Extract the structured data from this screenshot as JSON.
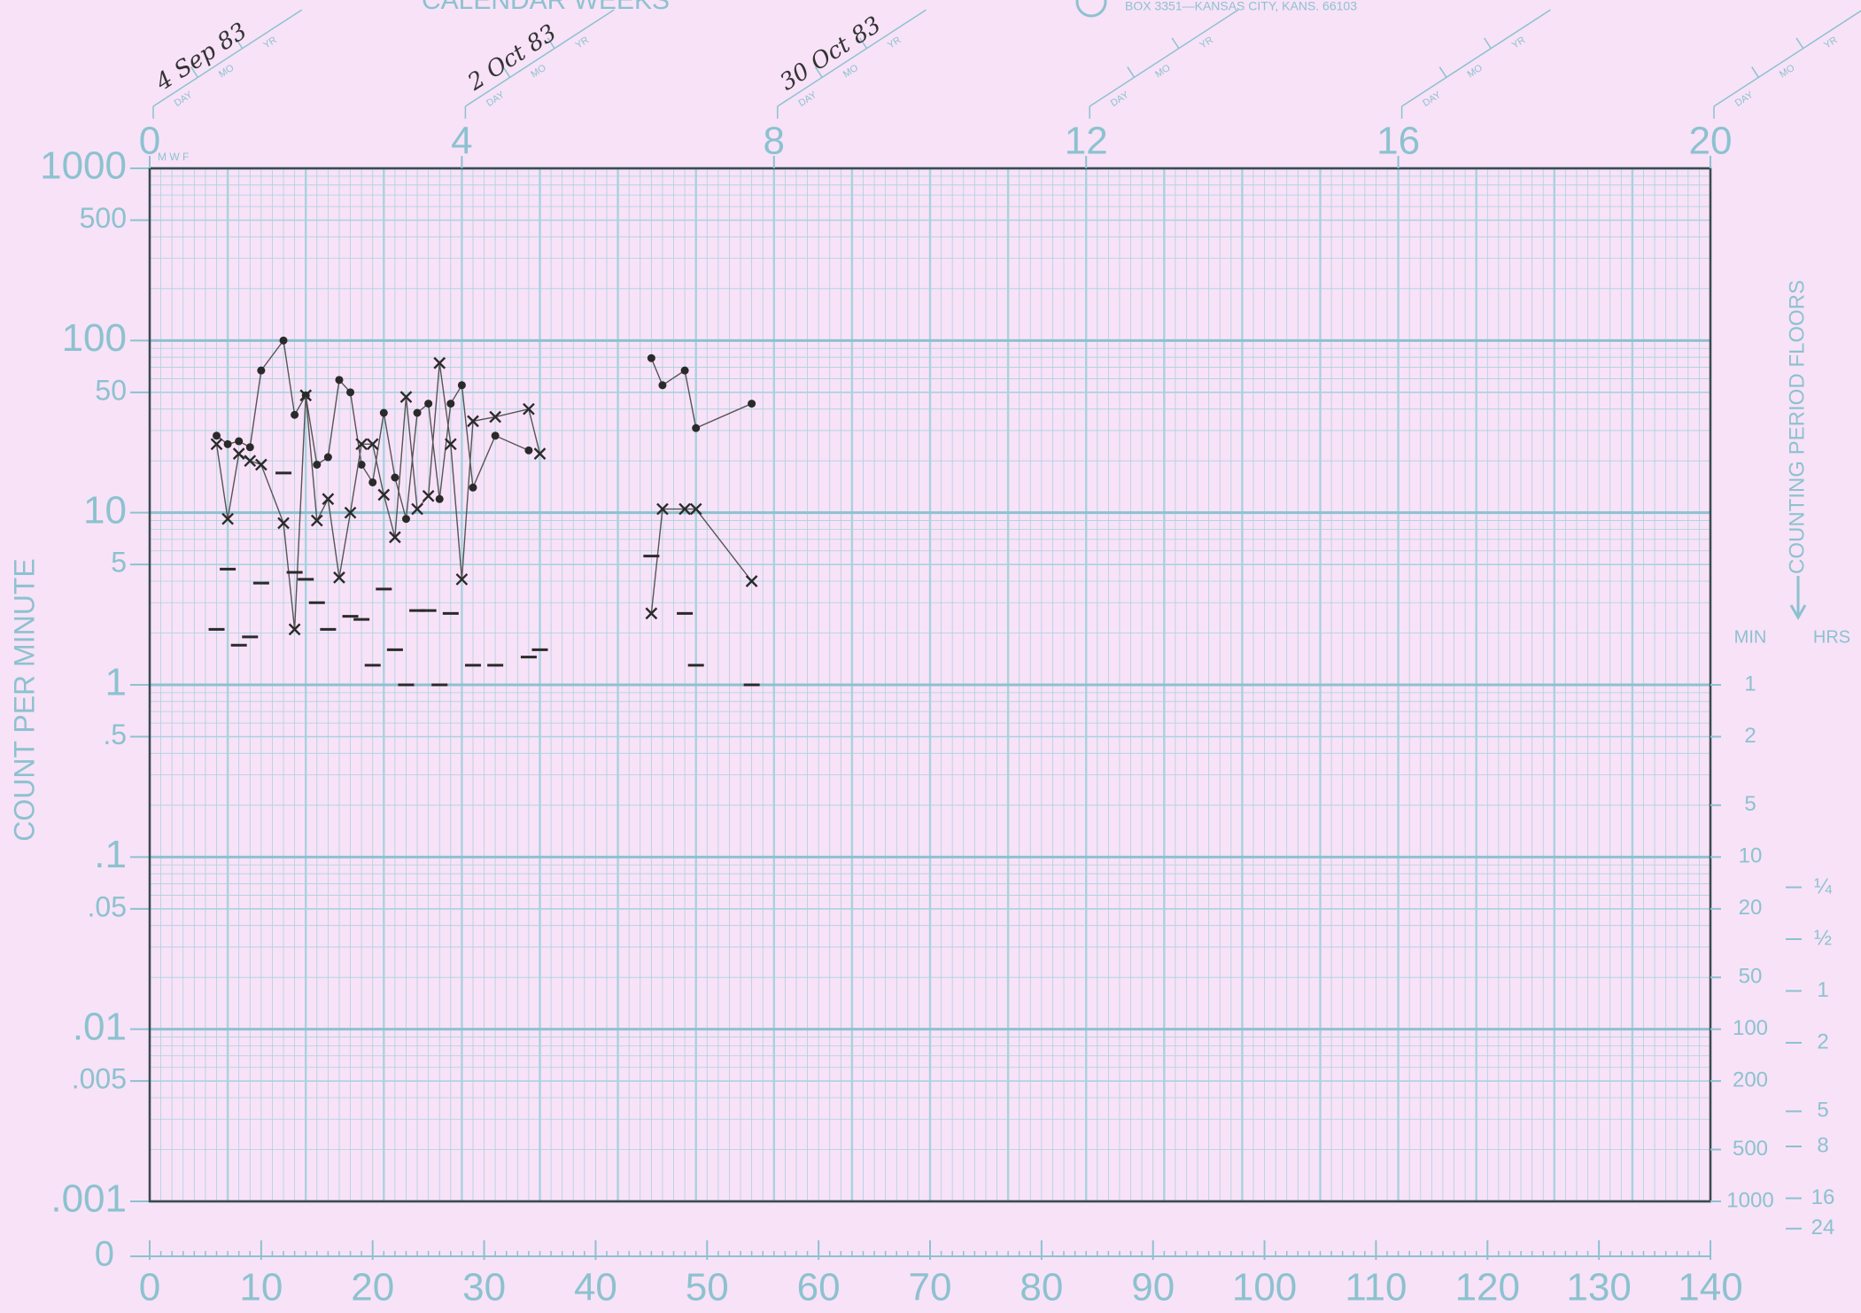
{
  "chart_data": {
    "type": "scatter",
    "header": "CALENDAR WEEKS",
    "publisher": "BOX 3351—KANSAS CITY, KANS. 66103",
    "ylabel": "COUNT PER MINUTE",
    "y2label": "COUNTING PERIOD FLOORS",
    "log_y": true,
    "grid": true,
    "xlim": [
      0,
      140
    ],
    "xticks": [
      0,
      10,
      20,
      30,
      40,
      50,
      60,
      70,
      80,
      90,
      100,
      110,
      120,
      130,
      140
    ],
    "ylim": [
      0.001,
      1000
    ],
    "yticks": [
      1000,
      500,
      100,
      50,
      10,
      5,
      1,
      {
        "value": 0.5,
        "label": ".5"
      },
      {
        "value": 0.1,
        "label": ".1"
      },
      {
        "value": 0.05,
        "label": ".05"
      },
      {
        "value": 0.01,
        "label": ".01"
      },
      {
        "value": 0.005,
        "label": ".005"
      },
      {
        "value": 0.001,
        "label": ".001"
      }
    ],
    "y_zero": 0,
    "x2lim": [
      0,
      20
    ],
    "x2ticks": [
      0,
      4,
      8,
      12,
      16,
      20
    ],
    "weekday_marks": "M W F",
    "date_fields": [
      "DAY",
      "MO",
      "YR"
    ],
    "date_annotations": [
      "4 Sep 83",
      "2 Oct 83",
      "30 Oct 83"
    ],
    "counting_period_min_label": "MIN",
    "counting_period_min": [
      1,
      2,
      5,
      10,
      20,
      50,
      100,
      200,
      500,
      1000
    ],
    "counting_period_hrs_label": "HRS",
    "counting_period_hrs": [
      {
        "value": 0.25,
        "label": "¼"
      },
      {
        "value": 0.5,
        "label": "½"
      },
      1,
      2,
      5,
      8,
      16,
      24
    ],
    "series": [
      {
        "marker": "dot",
        "color": "#2a2a2a",
        "x": [
          6,
          7,
          8,
          9,
          10,
          12,
          13,
          14,
          15,
          16,
          17,
          18,
          19,
          20,
          21,
          22,
          23,
          24,
          25,
          26,
          27,
          28,
          29,
          31,
          34,
          45,
          46,
          48,
          49,
          54
        ],
        "values": [
          28,
          25,
          26,
          24,
          67,
          100,
          37,
          48,
          19,
          21,
          59,
          50,
          19,
          15,
          38,
          16,
          9.2,
          38,
          43,
          12,
          43,
          55,
          14,
          28,
          23,
          79,
          55,
          67,
          31,
          43
        ]
      },
      {
        "marker": "x",
        "color": "#2a2a2a",
        "x": [
          6,
          7,
          8,
          9,
          10,
          12,
          13,
          14,
          15,
          16,
          17,
          18,
          19,
          20,
          21,
          22,
          23,
          24,
          25,
          26,
          27,
          28,
          29,
          31,
          34,
          35,
          45,
          46,
          48,
          49,
          54
        ],
        "values": [
          25,
          9.2,
          22,
          20,
          19,
          8.7,
          2.1,
          48,
          9,
          12,
          4.2,
          10,
          25,
          25,
          12.7,
          7.2,
          47,
          10.5,
          12.5,
          74,
          25,
          4.1,
          34,
          36,
          40,
          22,
          2.6,
          10.5,
          10.5,
          10.5,
          4
        ]
      },
      {
        "marker": "dash",
        "color": "#2a2a2a",
        "x": [
          6,
          7,
          8,
          9,
          10,
          12,
          13,
          14,
          15,
          16,
          18,
          19,
          20,
          21,
          22,
          23,
          24,
          25,
          26,
          27,
          29,
          31,
          34,
          35,
          45,
          48,
          49,
          54
        ],
        "values": [
          2.1,
          4.7,
          1.7,
          1.9,
          3.9,
          17,
          4.5,
          4.1,
          3,
          2.1,
          2.5,
          2.4,
          1.3,
          3.6,
          1.6,
          1,
          2.7,
          2.7,
          1,
          2.6,
          1.3,
          1.3,
          1.45,
          1.6,
          5.6,
          2.6,
          1.3,
          1
        ]
      }
    ]
  }
}
